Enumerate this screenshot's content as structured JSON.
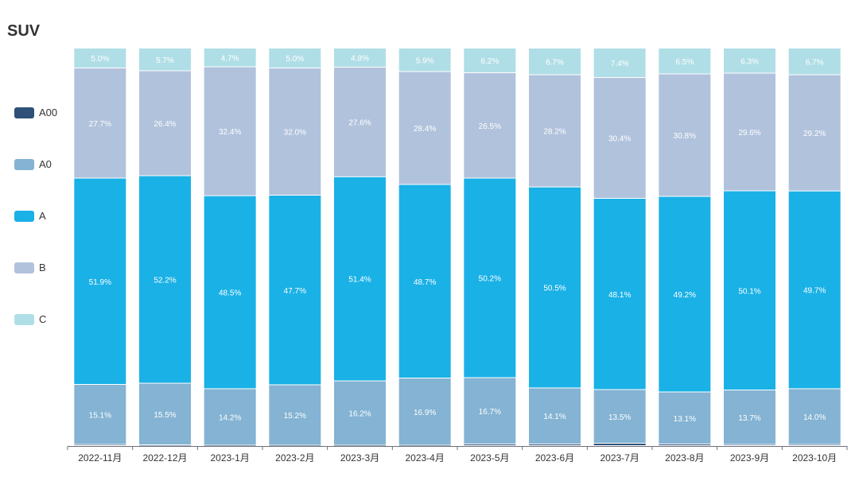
{
  "chart_data": {
    "type": "bar",
    "stacked": true,
    "title": "SUV",
    "xlabel": "",
    "ylabel": "",
    "ylim": [
      0,
      100
    ],
    "grid": false,
    "legend_position": "left",
    "categories": [
      "2022-11月",
      "2022-12月",
      "2023-1月",
      "2023-2月",
      "2023-3月",
      "2023-4月",
      "2023-5月",
      "2023-6月",
      "2023-7月",
      "2023-8月",
      "2023-9月",
      "2023-10月"
    ],
    "series": [
      {
        "name": "A00",
        "color": "#2e5079",
        "values": [
          0.3,
          0.2,
          0.1,
          0.1,
          0.1,
          0.1,
          0.4,
          0.4,
          0.6,
          0.4,
          0.3,
          0.3
        ]
      },
      {
        "name": "A0",
        "color": "#84b3d3",
        "values": [
          15.1,
          15.5,
          14.2,
          15.2,
          16.2,
          16.9,
          16.7,
          14.1,
          13.5,
          13.1,
          13.7,
          14.0
        ]
      },
      {
        "name": "A",
        "color": "#1ab1e6",
        "values": [
          51.9,
          52.2,
          48.5,
          47.7,
          51.4,
          48.7,
          50.2,
          50.5,
          48.1,
          49.2,
          50.1,
          49.7
        ]
      },
      {
        "name": "B",
        "color": "#b1c2dc",
        "values": [
          27.7,
          26.4,
          32.4,
          32.0,
          27.6,
          28.4,
          26.5,
          28.2,
          30.4,
          30.8,
          29.6,
          29.2
        ]
      },
      {
        "name": "C",
        "color": "#b0dee6",
        "values": [
          5.0,
          5.7,
          4.7,
          5.0,
          4.8,
          5.9,
          6.2,
          6.7,
          7.4,
          6.5,
          6.3,
          6.7
        ]
      }
    ]
  }
}
